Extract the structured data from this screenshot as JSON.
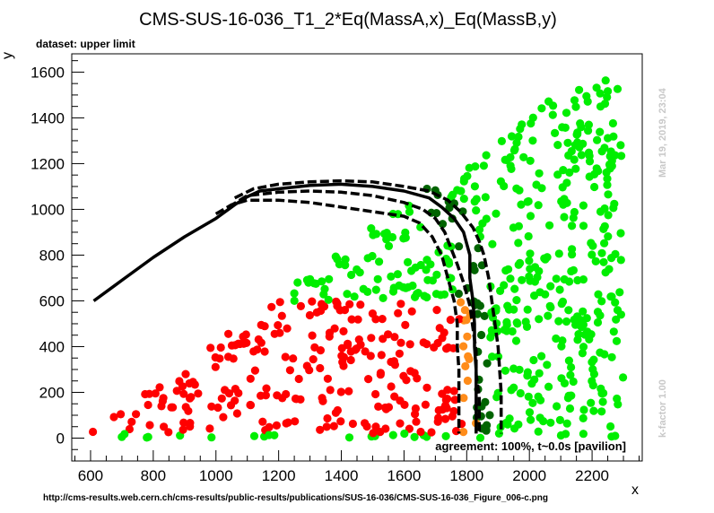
{
  "chart_data": {
    "type": "scatter",
    "title": "CMS-SUS-16-036_T1_2*Eq(MassA,x)_Eq(MassB,y)",
    "subtitle": "dataset: upper limit",
    "xlabel": "x",
    "ylabel": "y",
    "xlim": [
      540,
      2360
    ],
    "ylim": [
      -100,
      1680
    ],
    "x_ticks": [
      600,
      800,
      1000,
      1200,
      1400,
      1600,
      1800,
      2000,
      2200
    ],
    "y_ticks": [
      0,
      200,
      400,
      600,
      800,
      1000,
      1200,
      1400,
      1600
    ],
    "grid": false,
    "timestamp": "Mar 19, 2019, 23:04",
    "kfactor": "k-factor 1.00",
    "agreement": "agreement: 100%, t~0.0s [pavilion]",
    "url": "http://cms-results.web.cern.ch/cms-results/public-results/publications/SUS-16-036/CMS-SUS-16-036_Figure_006-c.png",
    "colors": {
      "excluded": "#ff0000",
      "allowed": "#00ee00",
      "excluded_border": "#ff8c1a",
      "allowed_border": "#006400",
      "contour": "#000000"
    },
    "contours": [
      {
        "style": "solid",
        "points": [
          [
            610,
            600
          ],
          [
            700,
            690
          ],
          [
            800,
            790
          ],
          [
            900,
            880
          ],
          [
            1000,
            960
          ],
          [
            1060,
            1020
          ],
          [
            1100,
            1055
          ],
          [
            1140,
            1080
          ],
          [
            1200,
            1090
          ],
          [
            1300,
            1105
          ],
          [
            1400,
            1110
          ],
          [
            1500,
            1100
          ],
          [
            1600,
            1080
          ],
          [
            1680,
            1050
          ],
          [
            1720,
            1010
          ],
          [
            1760,
            960
          ],
          [
            1790,
            900
          ],
          [
            1800,
            850
          ],
          [
            1810,
            800
          ],
          [
            1810,
            700
          ],
          [
            1820,
            600
          ],
          [
            1825,
            500
          ],
          [
            1825,
            400
          ],
          [
            1830,
            300
          ],
          [
            1830,
            200
          ],
          [
            1830,
            100
          ],
          [
            1830,
            20
          ]
        ]
      },
      {
        "style": "dashed",
        "points": [
          [
            1060,
            1050
          ],
          [
            1120,
            1090
          ],
          [
            1200,
            1110
          ],
          [
            1300,
            1120
          ],
          [
            1400,
            1125
          ],
          [
            1500,
            1120
          ],
          [
            1600,
            1100
          ],
          [
            1680,
            1080
          ],
          [
            1740,
            1040
          ],
          [
            1780,
            990
          ],
          [
            1820,
            920
          ],
          [
            1840,
            860
          ],
          [
            1855,
            800
          ],
          [
            1870,
            700
          ],
          [
            1880,
            600
          ],
          [
            1890,
            500
          ],
          [
            1900,
            400
          ],
          [
            1905,
            300
          ],
          [
            1910,
            200
          ],
          [
            1910,
            100
          ],
          [
            1910,
            20
          ]
        ]
      },
      {
        "style": "dashed",
        "points": [
          [
            1000,
            980
          ],
          [
            1050,
            1020
          ],
          [
            1100,
            1040
          ],
          [
            1200,
            1040
          ],
          [
            1300,
            1030
          ],
          [
            1400,
            1010
          ],
          [
            1500,
            990
          ],
          [
            1600,
            970
          ],
          [
            1650,
            940
          ],
          [
            1690,
            880
          ],
          [
            1720,
            800
          ],
          [
            1740,
            700
          ],
          [
            1760,
            600
          ],
          [
            1770,
            500
          ],
          [
            1770,
            400
          ],
          [
            1775,
            300
          ],
          [
            1775,
            200
          ],
          [
            1775,
            100
          ],
          [
            1775,
            20
          ]
        ]
      },
      {
        "style": "dashed",
        "points": [
          [
            1040,
            1010
          ],
          [
            1100,
            1060
          ],
          [
            1200,
            1075
          ],
          [
            1300,
            1080
          ],
          [
            1400,
            1075
          ],
          [
            1500,
            1060
          ],
          [
            1600,
            1030
          ],
          [
            1660,
            1000
          ],
          [
            1700,
            960
          ],
          [
            1730,
            900
          ],
          [
            1750,
            830
          ],
          [
            1770,
            760
          ],
          [
            1790,
            680
          ],
          [
            1810,
            580
          ],
          [
            1820,
            480
          ],
          [
            1830,
            380
          ],
          [
            1830,
            280
          ],
          [
            1840,
            180
          ],
          [
            1840,
            80
          ],
          [
            1840,
            20
          ]
        ]
      }
    ]
  }
}
